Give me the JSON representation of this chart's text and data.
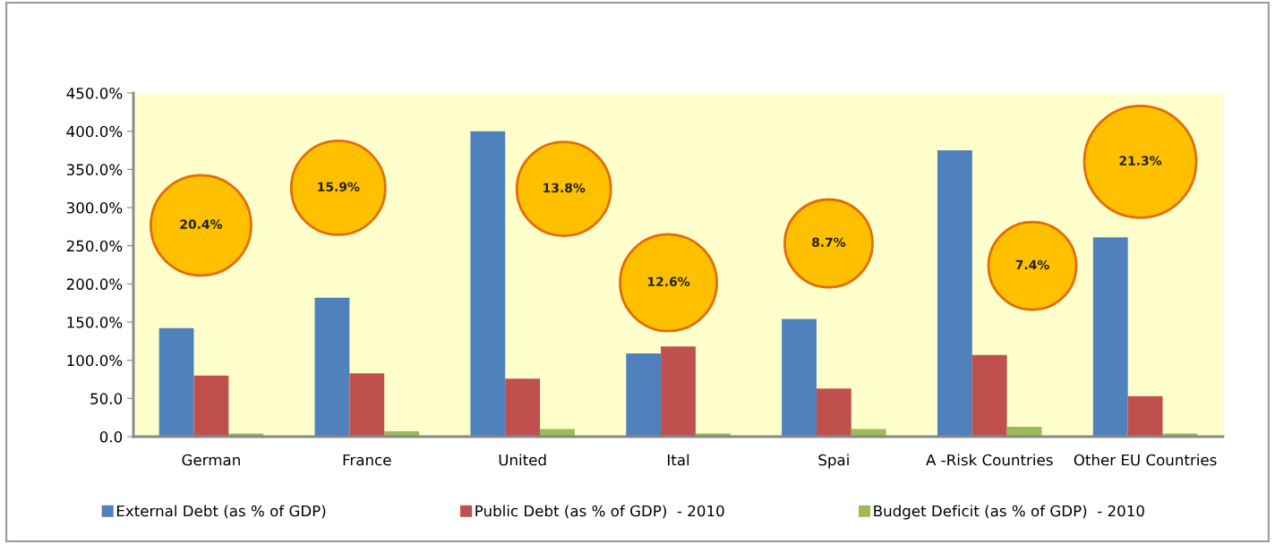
{
  "chart_data": {
    "type": "bar",
    "categories": [
      "German",
      "France",
      "United",
      "Ital",
      "Spai",
      "A -Risk Countries",
      "Other EU Countries"
    ],
    "series": [
      {
        "name": "External Debt (as % of GDP)",
        "color": "#4f81bd",
        "values": [
          142,
          182,
          400,
          109,
          154,
          375,
          261
        ]
      },
      {
        "name": "Public Debt (as % of GDP)  - 2010",
        "color": "#c0504d",
        "values": [
          80,
          83,
          76,
          118,
          63,
          107,
          53
        ]
      },
      {
        "name": "Budget Deficit (as % of GDP)  - 2010",
        "color": "#9bbb59",
        "values": [
          4,
          7,
          10,
          4,
          10,
          13,
          4
        ]
      }
    ],
    "ylim": [
      0,
      450
    ],
    "yticks": [
      {
        "value": 0,
        "label": "0.0"
      },
      {
        "value": 50,
        "label": "50.0"
      },
      {
        "value": 100,
        "label": "100.0%"
      },
      {
        "value": 150,
        "label": "150.0%"
      },
      {
        "value": 200,
        "label": "200.0%"
      },
      {
        "value": 250,
        "label": "250.0%"
      },
      {
        "value": 300,
        "label": "300.0%"
      },
      {
        "value": 350,
        "label": "350.0%"
      },
      {
        "value": 400,
        "label": "400.0%"
      },
      {
        "value": 450,
        "label": "450.0%"
      }
    ],
    "annotations": [
      "20.4%",
      "15.9%",
      "13.8%",
      "12.6%",
      "8.7%",
      "7.4%",
      "21.3%"
    ],
    "grid": false,
    "legend": "bottom"
  }
}
